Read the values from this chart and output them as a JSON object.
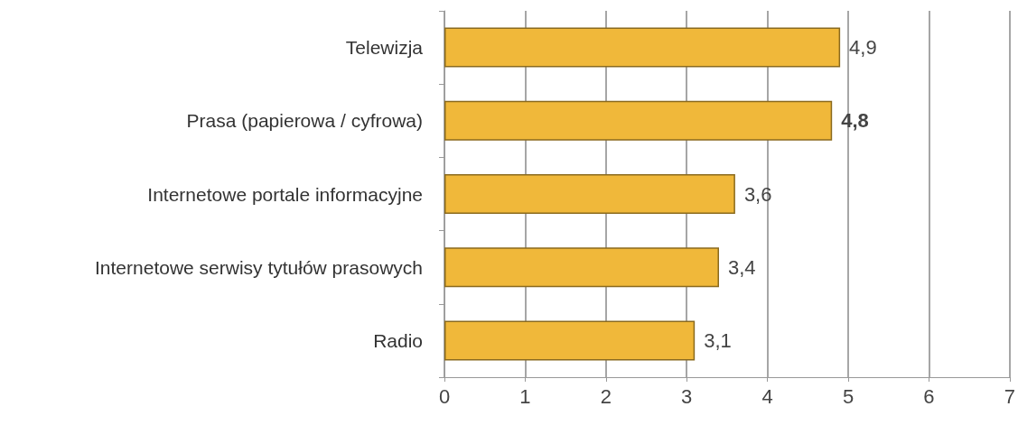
{
  "chart_data": {
    "type": "bar",
    "orientation": "horizontal",
    "categories": [
      "Telewizja",
      "Prasa (papierowa / cyfrowa)",
      "Internetowe portale informacyjne",
      "Internetowe serwisy tytułów prasowych",
      "Radio"
    ],
    "values": [
      4.9,
      4.8,
      3.6,
      3.4,
      3.1
    ],
    "value_labels": [
      "4,9",
      "4,8",
      "3,6",
      "3,4",
      "3,1"
    ],
    "color": "#f0b83a",
    "xlim": [
      0,
      7
    ],
    "xticks": [
      0,
      1,
      2,
      3,
      4,
      5,
      6,
      7
    ],
    "grid": "x"
  }
}
